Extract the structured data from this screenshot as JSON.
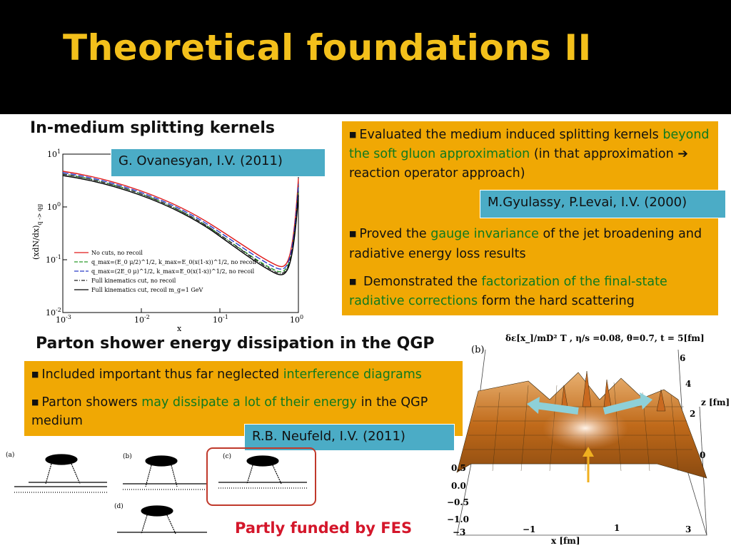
{
  "slide": {
    "title": "Theoretical foundations II",
    "funded": "Partly funded by FES"
  },
  "section1": {
    "heading": "In-medium splitting kernels",
    "ref": "G. Ovanesyan, I.V. (2011)",
    "plot": {
      "ylabel": "(xdN/dx)",
      "ysub": "q -> qg",
      "xlabel": "x",
      "yticks": [
        "10",
        "10",
        "10",
        "10"
      ],
      "yticks_exp": [
        "1",
        "0",
        "-1",
        "-2"
      ],
      "xticks": [
        "10",
        "10",
        "10",
        "10"
      ],
      "xticks_exp": [
        "-3",
        "-2",
        "-1",
        "0"
      ],
      "legend": [
        "No cuts, no recoil",
        "q_max=(E_0 μ/2)^1/2, k_max=E_0(x(1-x))^1/2, no recoil",
        "q_max=(2E_0 μ)^1/2, k_max=E_0(x(1-x))^1/2, no recoil",
        "Full kinematics cut, no recoil",
        "Full kinematics cut, recoil m_g=1 GeV"
      ],
      "colors": [
        "#e01a1a",
        "#2a9a2a",
        "#2a3cc8",
        "#222222",
        "#000000"
      ]
    }
  },
  "box1": {
    "p1_pre": "Evaluated the medium induced splitting kernels ",
    "p1_hl": "beyond the soft gluon approximation",
    "p1_post": " (in that approximation ",
    "p1_arrow": "➔",
    "p1_end": " reaction operator approach)",
    "ref": "M.Gyulassy, P.Levai, I.V. (2000)",
    "p2_pre": "Proved the ",
    "p2_hl": "gauge invariance",
    "p2_post": " of the jet broadening and radiative energy loss results",
    "p3_pre": " Demonstrated the ",
    "p3_hl": "factorization of the final-state radiative corrections",
    "p3_post": " form the hard scattering"
  },
  "section2": {
    "heading": "Parton shower energy dissipation in the QGP",
    "b1_pre": "Included important thus far neglected ",
    "b1_hl": "interference diagrams",
    "b2_pre": "Parton showers ",
    "b2_hl": "may dissipate a lot of their energy",
    "b2_post": " in the QGP medium",
    "ref": "R.B. Neufeld, I.V.  (2011)",
    "diagram_labels": [
      "(a)",
      "(b)",
      "(c)",
      "(d)"
    ]
  },
  "surface": {
    "panel": "(b)",
    "formula": "δε[x_]/mD² T , η/s =0.08, θ=0.7, t = 5[fm]",
    "zlabel": "z [fm]",
    "xlabel": "x [fm]",
    "zticks": [
      "6",
      "4",
      "2",
      "0"
    ],
    "xticks": [
      "−3",
      "−1",
      "1",
      "3"
    ],
    "yticks": [
      "0.5",
      "0.0",
      "−0.5",
      "−1.0"
    ]
  }
}
